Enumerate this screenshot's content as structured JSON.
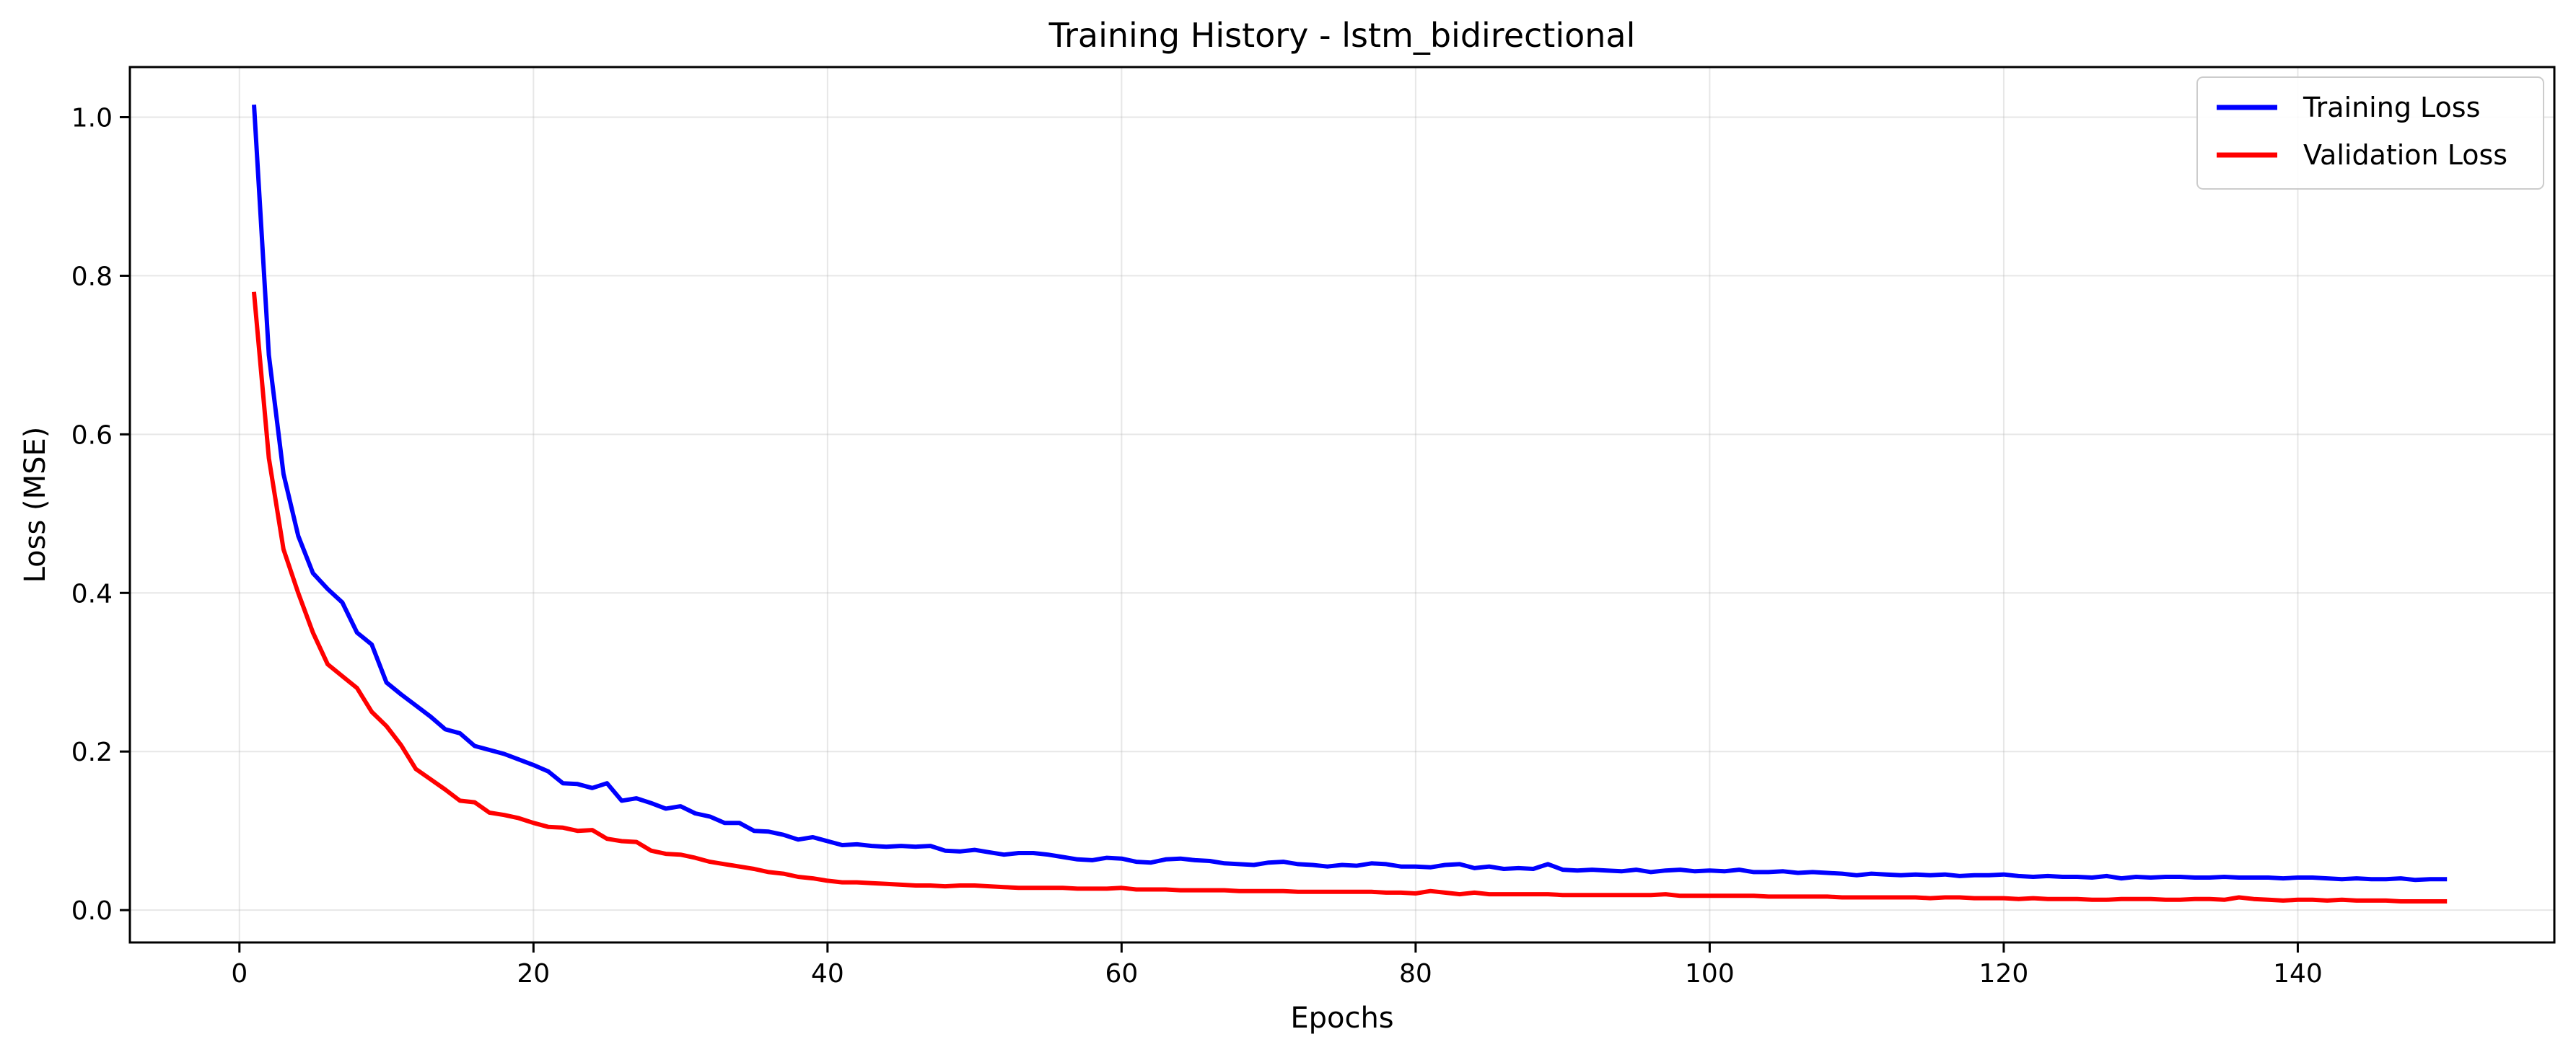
{
  "chart_data": {
    "type": "line",
    "title": "Training History - lstm_bidirectional",
    "xlabel": "Epochs",
    "ylabel": "Loss (MSE)",
    "xlim": [
      -7.45,
      157.45
    ],
    "ylim": [
      -0.0408,
      1.0632
    ],
    "x_ticks": [
      0,
      20,
      40,
      60,
      80,
      100,
      120,
      140
    ],
    "y_ticks": [
      0.0,
      0.2,
      0.4,
      0.6,
      0.8,
      1.0
    ],
    "x_tick_labels": [
      "0",
      "20",
      "40",
      "60",
      "80",
      "100",
      "120",
      "140"
    ],
    "y_tick_labels": [
      "0.0",
      "0.2",
      "0.4",
      "0.6",
      "0.8",
      "1.0"
    ],
    "grid": true,
    "legend_position": "top-right",
    "series": [
      {
        "name": "Training Loss",
        "color": "#0000ff",
        "x": [
          1,
          2,
          3,
          4,
          5,
          6,
          7,
          8,
          9,
          10,
          11,
          12,
          13,
          14,
          15,
          16,
          17,
          18,
          19,
          20,
          21,
          22,
          23,
          24,
          25,
          26,
          27,
          28,
          29,
          30,
          31,
          32,
          33,
          34,
          35,
          36,
          37,
          38,
          39,
          40,
          41,
          42,
          43,
          44,
          45,
          46,
          47,
          48,
          49,
          50,
          51,
          52,
          53,
          54,
          55,
          56,
          57,
          58,
          59,
          60,
          61,
          62,
          63,
          64,
          65,
          66,
          67,
          68,
          69,
          70,
          71,
          72,
          73,
          74,
          75,
          76,
          77,
          78,
          79,
          80,
          81,
          82,
          83,
          84,
          85,
          86,
          87,
          88,
          89,
          90,
          91,
          92,
          93,
          94,
          95,
          96,
          97,
          98,
          99,
          100,
          101,
          102,
          103,
          104,
          105,
          106,
          107,
          108,
          109,
          110,
          111,
          112,
          113,
          114,
          115,
          116,
          117,
          118,
          119,
          120,
          121,
          122,
          123,
          124,
          125,
          126,
          127,
          128,
          129,
          130,
          131,
          132,
          133,
          134,
          135,
          136,
          137,
          138,
          139,
          140,
          141,
          142,
          143,
          144,
          145,
          146,
          147,
          148,
          149,
          150
        ],
        "values": [
          1.013,
          0.7,
          0.55,
          0.472,
          0.425,
          0.405,
          0.388,
          0.35,
          0.335,
          0.287,
          0.272,
          0.258,
          0.244,
          0.228,
          0.223,
          0.207,
          0.202,
          0.197,
          0.19,
          0.183,
          0.175,
          0.16,
          0.159,
          0.154,
          0.16,
          0.138,
          0.141,
          0.135,
          0.128,
          0.131,
          0.122,
          0.118,
          0.11,
          0.11,
          0.1,
          0.099,
          0.095,
          0.089,
          0.092,
          0.087,
          0.082,
          0.083,
          0.081,
          0.08,
          0.081,
          0.08,
          0.081,
          0.075,
          0.074,
          0.076,
          0.073,
          0.07,
          0.072,
          0.072,
          0.07,
          0.067,
          0.064,
          0.063,
          0.066,
          0.065,
          0.061,
          0.06,
          0.064,
          0.065,
          0.063,
          0.062,
          0.059,
          0.058,
          0.057,
          0.06,
          0.061,
          0.058,
          0.057,
          0.055,
          0.057,
          0.056,
          0.059,
          0.058,
          0.055,
          0.055,
          0.054,
          0.057,
          0.058,
          0.053,
          0.055,
          0.052,
          0.053,
          0.052,
          0.058,
          0.051,
          0.05,
          0.051,
          0.05,
          0.049,
          0.051,
          0.048,
          0.05,
          0.051,
          0.049,
          0.05,
          0.049,
          0.051,
          0.048,
          0.048,
          0.049,
          0.047,
          0.048,
          0.047,
          0.046,
          0.044,
          0.046,
          0.045,
          0.044,
          0.045,
          0.044,
          0.045,
          0.043,
          0.044,
          0.044,
          0.045,
          0.043,
          0.042,
          0.043,
          0.042,
          0.042,
          0.041,
          0.043,
          0.04,
          0.042,
          0.041,
          0.042,
          0.042,
          0.041,
          0.041,
          0.042,
          0.041,
          0.041,
          0.041,
          0.04,
          0.041,
          0.041,
          0.04,
          0.039,
          0.04,
          0.039,
          0.039,
          0.04,
          0.038,
          0.039,
          0.039
        ]
      },
      {
        "name": "Validation Loss",
        "color": "#ff0000",
        "x": [
          1,
          2,
          3,
          4,
          5,
          6,
          7,
          8,
          9,
          10,
          11,
          12,
          13,
          14,
          15,
          16,
          17,
          18,
          19,
          20,
          21,
          22,
          23,
          24,
          25,
          26,
          27,
          28,
          29,
          30,
          31,
          32,
          33,
          34,
          35,
          36,
          37,
          38,
          39,
          40,
          41,
          42,
          43,
          44,
          45,
          46,
          47,
          48,
          49,
          50,
          51,
          52,
          53,
          54,
          55,
          56,
          57,
          58,
          59,
          60,
          61,
          62,
          63,
          64,
          65,
          66,
          67,
          68,
          69,
          70,
          71,
          72,
          73,
          74,
          75,
          76,
          77,
          78,
          79,
          80,
          81,
          82,
          83,
          84,
          85,
          86,
          87,
          88,
          89,
          90,
          91,
          92,
          93,
          94,
          95,
          96,
          97,
          98,
          99,
          100,
          101,
          102,
          103,
          104,
          105,
          106,
          107,
          108,
          109,
          110,
          111,
          112,
          113,
          114,
          115,
          116,
          117,
          118,
          119,
          120,
          121,
          122,
          123,
          124,
          125,
          126,
          127,
          128,
          129,
          130,
          131,
          132,
          133,
          134,
          135,
          136,
          137,
          138,
          139,
          140,
          141,
          142,
          143,
          144,
          145,
          146,
          147,
          148,
          149,
          150
        ],
        "values": [
          0.777,
          0.57,
          0.455,
          0.4,
          0.35,
          0.31,
          0.295,
          0.28,
          0.25,
          0.232,
          0.208,
          0.178,
          0.165,
          0.152,
          0.138,
          0.136,
          0.123,
          0.12,
          0.116,
          0.11,
          0.105,
          0.104,
          0.1,
          0.101,
          0.09,
          0.087,
          0.086,
          0.075,
          0.071,
          0.07,
          0.066,
          0.061,
          0.058,
          0.055,
          0.052,
          0.048,
          0.046,
          0.042,
          0.04,
          0.037,
          0.035,
          0.035,
          0.034,
          0.033,
          0.032,
          0.031,
          0.031,
          0.03,
          0.031,
          0.031,
          0.03,
          0.029,
          0.028,
          0.028,
          0.028,
          0.028,
          0.027,
          0.027,
          0.027,
          0.028,
          0.026,
          0.026,
          0.026,
          0.025,
          0.025,
          0.025,
          0.025,
          0.024,
          0.024,
          0.024,
          0.024,
          0.023,
          0.023,
          0.023,
          0.023,
          0.023,
          0.023,
          0.022,
          0.022,
          0.021,
          0.024,
          0.022,
          0.02,
          0.022,
          0.02,
          0.02,
          0.02,
          0.02,
          0.02,
          0.019,
          0.019,
          0.019,
          0.019,
          0.019,
          0.019,
          0.019,
          0.02,
          0.018,
          0.018,
          0.018,
          0.018,
          0.018,
          0.018,
          0.017,
          0.017,
          0.017,
          0.017,
          0.017,
          0.016,
          0.016,
          0.016,
          0.016,
          0.016,
          0.016,
          0.015,
          0.016,
          0.016,
          0.015,
          0.015,
          0.015,
          0.014,
          0.015,
          0.014,
          0.014,
          0.014,
          0.013,
          0.013,
          0.014,
          0.014,
          0.014,
          0.013,
          0.013,
          0.014,
          0.014,
          0.013,
          0.016,
          0.014,
          0.013,
          0.012,
          0.013,
          0.013,
          0.012,
          0.013,
          0.012,
          0.012,
          0.012,
          0.011,
          0.011,
          0.011,
          0.011
        ]
      }
    ]
  }
}
